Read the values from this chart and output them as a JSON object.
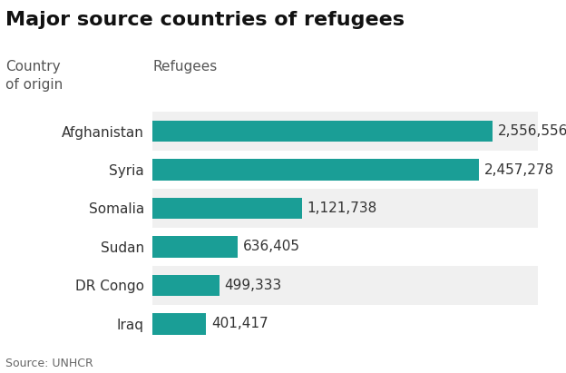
{
  "title": "Major source countries of refugees",
  "col_label_left": "Country\nof origin",
  "col_label_right": "Refugees",
  "source": "Source: UNHCR",
  "categories": [
    "Afghanistan",
    "Syria",
    "Somalia",
    "Sudan",
    "DR Congo",
    "Iraq"
  ],
  "values": [
    2556556,
    2457278,
    1121738,
    636405,
    499333,
    401417
  ],
  "value_labels": [
    "2,556,556",
    "2,457,278",
    "1,121,738",
    "636,405",
    "499,333",
    "401,417"
  ],
  "bar_color": "#1a9e96",
  "background_color": "#f0f0f0",
  "figure_background": "#ffffff",
  "title_fontsize": 16,
  "label_fontsize": 11,
  "value_fontsize": 11,
  "source_fontsize": 9,
  "bar_height": 0.55,
  "xlim": [
    0,
    2900000
  ]
}
